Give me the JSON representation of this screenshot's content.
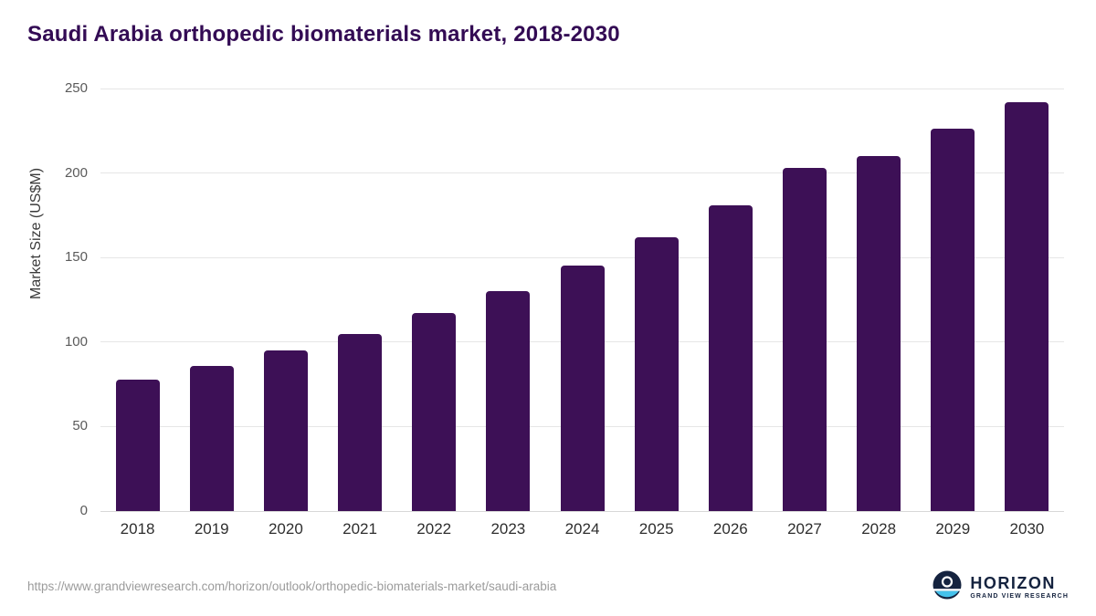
{
  "chart_data": {
    "type": "bar",
    "title": "Saudi Arabia orthopedic biomaterials market, 2018-2030",
    "categories": [
      "2018",
      "2019",
      "2020",
      "2021",
      "2022",
      "2023",
      "2024",
      "2025",
      "2026",
      "2027",
      "2028",
      "2029",
      "2030"
    ],
    "values": [
      78,
      86,
      95,
      105,
      117,
      130,
      145,
      162,
      181,
      203,
      210,
      226,
      242
    ],
    "xlabel": "",
    "ylabel": "Market Size (US$M)",
    "ylim": [
      0,
      250
    ],
    "yticks": [
      0,
      50,
      100,
      150,
      200,
      250
    ],
    "bar_color": "#3d1056",
    "grid": "horizontal",
    "legend": "none"
  },
  "footer": {
    "source_url": "https://www.grandviewresearch.com/horizon/outlook/orthopedic-biomaterials-market/saudi-arabia",
    "logo_title": "HORIZON",
    "logo_subtitle": "GRAND VIEW RESEARCH"
  },
  "colors": {
    "title": "#330b54",
    "gridline": "#e6e6e6",
    "logo_navy": "#15233f",
    "logo_blue": "#45c2ec"
  }
}
